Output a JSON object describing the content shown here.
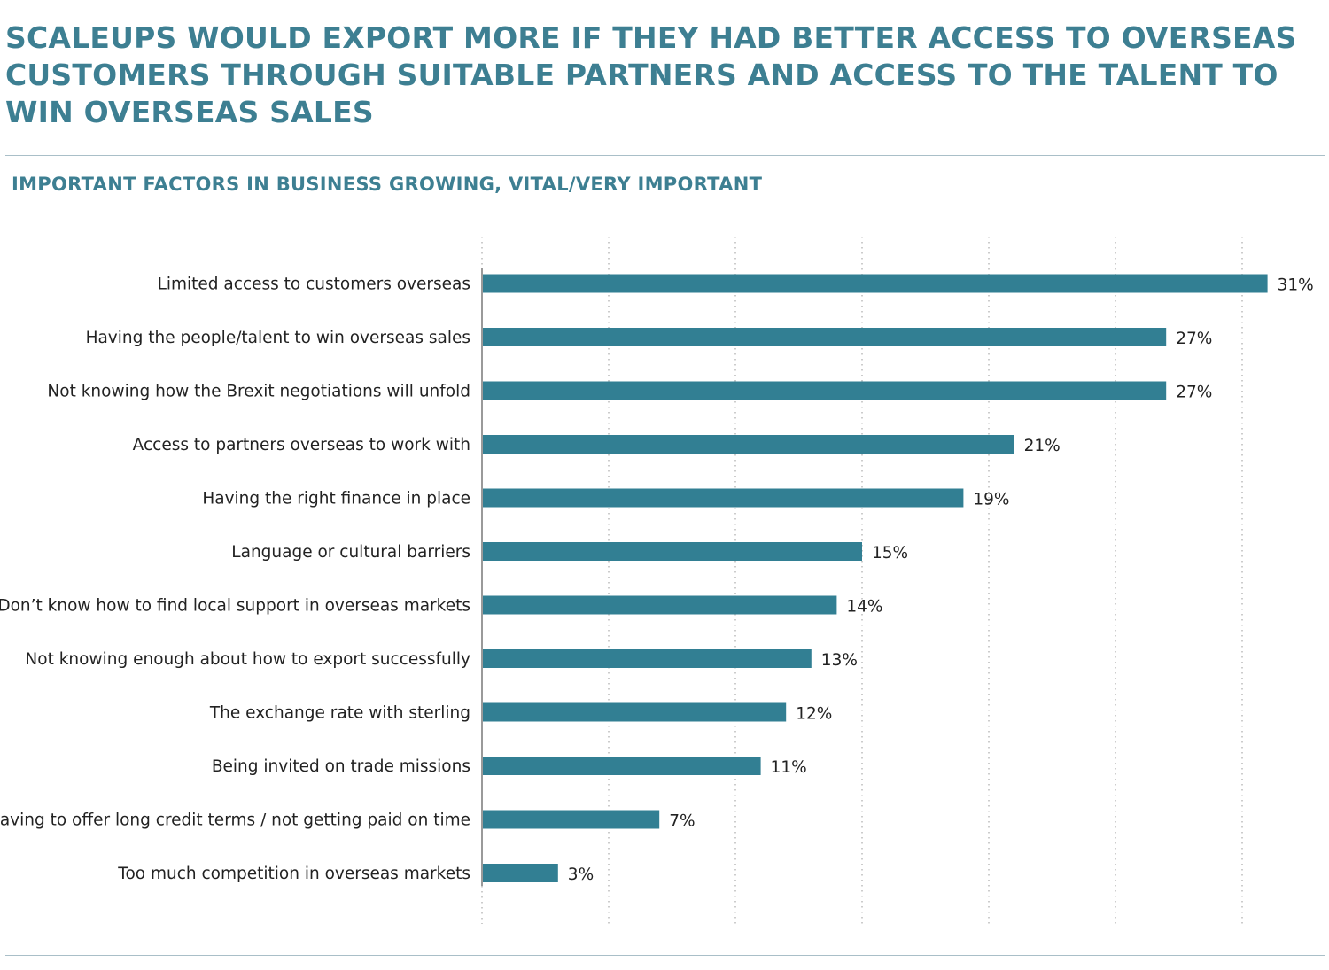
{
  "header": {
    "title": "SCALEUPS WOULD EXPORT MORE IF THEY HAD BETTER ACCESS TO OVERSEAS CUSTOMERS THROUGH SUITABLE PARTNERS AND ACCESS TO THE TALENT TO WIN OVERSEAS SALES",
    "subtitle": "IMPORTANT FACTORS IN BUSINESS GROWING, VITAL/VERY IMPORTANT"
  },
  "colors": {
    "title": "#3d7f92",
    "bar": "#327f93",
    "axis": "#9a9a9a",
    "grid": "#bbbbbb",
    "rule": "#a9bfc8"
  },
  "chart_data": {
    "type": "bar",
    "orientation": "horizontal",
    "title": "IMPORTANT FACTORS IN BUSINESS GROWING, VITAL/VERY IMPORTANT",
    "xlabel": "",
    "ylabel": "",
    "unit": "%",
    "xlim": [
      0,
      32
    ],
    "grid": "vertical dotted",
    "categories": [
      "Limited access to customers overseas",
      "Having the people/talent to win overseas sales",
      "Not knowing how the Brexit negotiations will unfold",
      "Access to partners overseas to work with",
      "Having the right finance in place",
      "Language or cultural barriers",
      "Don’t know how to find local support in overseas markets",
      "Not knowing enough about how to export successfully",
      "The exchange rate with sterling",
      "Being invited on trade missions",
      "Having to offer long credit terms / not getting paid on time",
      "Too much competition in overseas markets"
    ],
    "values": [
      31,
      27,
      27,
      21,
      19,
      15,
      14,
      13,
      12,
      11,
      7,
      3
    ],
    "labels": [
      "31%",
      "27%",
      "27%",
      "21%",
      "19%",
      "15%",
      "14%",
      "13%",
      "12%",
      "11%",
      "7%",
      "3%"
    ]
  }
}
